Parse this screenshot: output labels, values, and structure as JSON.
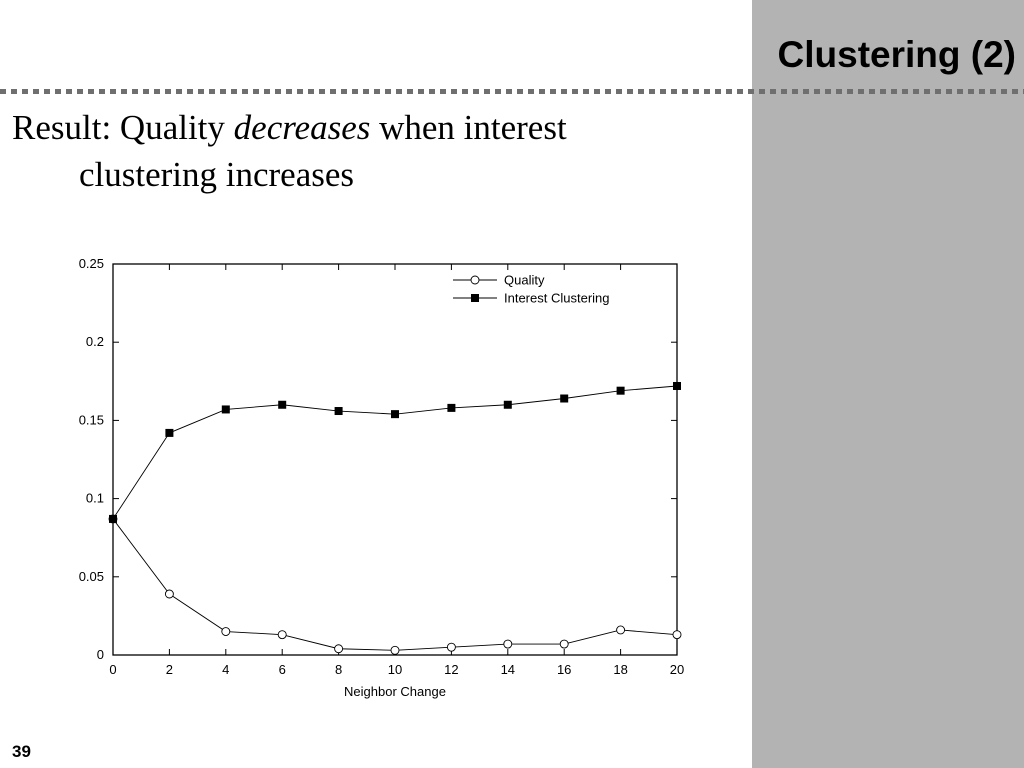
{
  "slide": {
    "title": "Clustering (2)",
    "bullet": {
      "prefix": "Result: Quality ",
      "emphasis": "decreases",
      "line1_suffix": " when interest",
      "line2": "clustering increases"
    },
    "page_number": "39"
  },
  "colors": {
    "side_panel": "#b3b3b3",
    "dotted_rule": "#6f6f6f"
  },
  "chart_data": {
    "type": "line",
    "xlabel": "Neighbor Change",
    "ylabel": "",
    "x": [
      0,
      2,
      4,
      6,
      8,
      10,
      12,
      14,
      16,
      18,
      20
    ],
    "xlim": [
      0,
      20
    ],
    "ylim": [
      0,
      0.25
    ],
    "x_ticks": [
      "0",
      "2",
      "4",
      "6",
      "8",
      "10",
      "12",
      "14",
      "16",
      "18",
      "20"
    ],
    "y_ticks": [
      "0",
      "0.05",
      "0.1",
      "0.15",
      "0.2",
      "0.25"
    ],
    "legend_position": "top-right",
    "grid": false,
    "series": [
      {
        "name": "Quality",
        "marker": "open-circle",
        "values": [
          0.087,
          0.039,
          0.015,
          0.013,
          0.004,
          0.003,
          0.005,
          0.007,
          0.007,
          0.016,
          0.013
        ]
      },
      {
        "name": "Interest Clustering",
        "marker": "filled-square",
        "values": [
          0.087,
          0.142,
          0.157,
          0.16,
          0.156,
          0.154,
          0.158,
          0.16,
          0.164,
          0.169,
          0.172
        ]
      }
    ]
  }
}
